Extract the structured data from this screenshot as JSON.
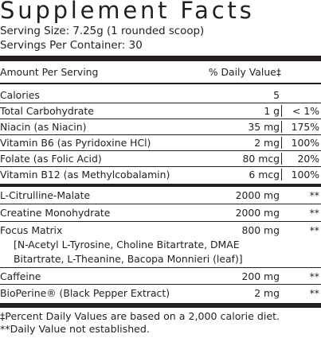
{
  "title": "Supplement Facts",
  "serving_size": "Serving Size: 7.25g (1 rounded scoop)",
  "servings_per_container": "Servings Per Container: 30",
  "header": {
    "amount": "Amount Per Serving",
    "daily_value": "% Daily Value‡"
  },
  "rows": [
    {
      "name": "Calories",
      "amount": "5",
      "dv": ""
    },
    {
      "name": "Total Carbohydrate",
      "amount": "1 g",
      "dv": "< 1%"
    },
    {
      "name": "Niacin (as Niacin)",
      "amount": "35 mg",
      "dv": "175%"
    },
    {
      "name": "Vitamin B6 (as Pyridoxine HCl)",
      "amount": "2 mg",
      "dv": "100%"
    },
    {
      "name": "Folate (as Folic Acid)",
      "amount": "80 mcg",
      "dv": "20%"
    },
    {
      "name": "Vitamin B12 (as Methylcobalamin)",
      "amount": "6 mcg",
      "dv": "100%"
    },
    {
      "name": "L-Citrulline-Malate",
      "amount": "2000 mg",
      "dv": "**"
    },
    {
      "name": "Creatine Monohydrate",
      "amount": "2000 mg",
      "dv": "**"
    },
    {
      "name": "Focus Matrix",
      "amount": "800 mg",
      "dv": "**"
    },
    {
      "name": "Caffeine",
      "amount": "200 mg",
      "dv": "**"
    },
    {
      "name": "BioPerine® (Black Pepper Extract)",
      "amount": "2 mg",
      "dv": "**"
    }
  ],
  "focus_matrix_ingredients": [
    "[N-Acetyl L-Tyrosine, Choline Bitartrate, DMAE",
    "Bitartrate, L-Theanine, Bacopa Monnieri (leaf)]"
  ],
  "footnotes": [
    "‡Percent Daily Values are based on a 2,000 calorie diet.",
    "**Daily Value not established."
  ]
}
